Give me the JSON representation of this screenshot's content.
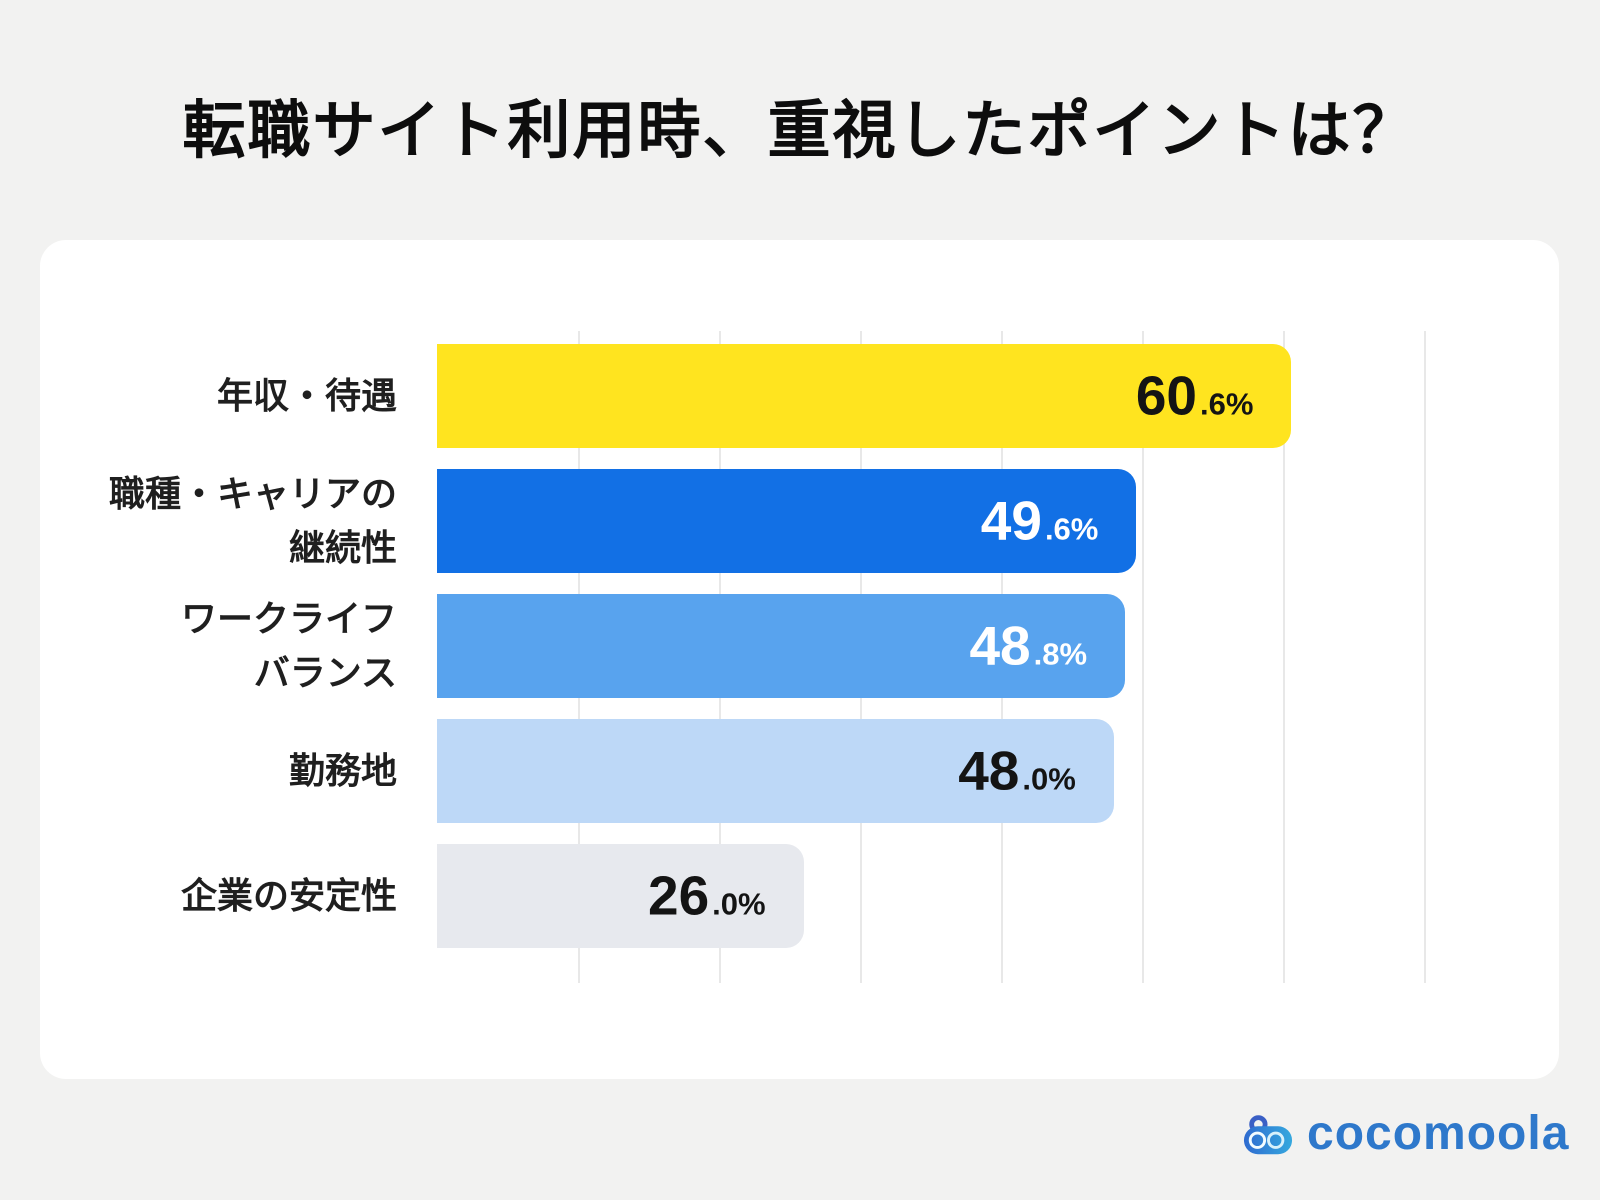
{
  "title": "転職サイト利用時、重視したポイントは？",
  "chart_data": {
    "type": "bar",
    "orientation": "horizontal",
    "title": "転職サイト利用時、重視したポイントは？",
    "categories": [
      "年収・待遇",
      "職種・キャリアの継続性",
      "ワークライフバランス",
      "勤務地",
      "企業の安定性"
    ],
    "category_lines": [
      [
        "年収・待遇"
      ],
      [
        "職種・キャリアの",
        "継続性"
      ],
      [
        "ワークライフ",
        "バランス"
      ],
      [
        "勤務地"
      ],
      [
        "企業の安定性"
      ]
    ],
    "values": [
      60.6,
      49.6,
      48.8,
      48.0,
      26.0
    ],
    "value_labels": [
      "60.6%",
      "49.6%",
      "48.8%",
      "48.0%",
      "26.0%"
    ],
    "bar_colors": [
      "#FFE41F",
      "#1270E5",
      "#58A3EE",
      "#BDD8F7",
      "#E7E9EE"
    ],
    "value_text_colors": [
      "#141414",
      "#FFFFFF",
      "#FFFFFF",
      "#141414",
      "#141414"
    ],
    "xlim": [
      0,
      70
    ],
    "gridline_step": 10,
    "grid": true,
    "legend": false,
    "xlabel": "",
    "ylabel": ""
  },
  "logo": {
    "text": "cocomoola",
    "brand_color": "#2E78CB",
    "icon": "cocomoola-robot-icon",
    "icon_colors": {
      "handle": "#3A5FC5",
      "body_left": "#2F6BD0",
      "body_right": "#35A8DE",
      "rings": "#E9F6FD"
    }
  },
  "colors": {
    "background": "#F2F2F1",
    "panel": "#FFFFFF",
    "gridline": "#E8E8E8",
    "title_text": "#0D0D0D",
    "category_text": "#1F1F1F"
  }
}
